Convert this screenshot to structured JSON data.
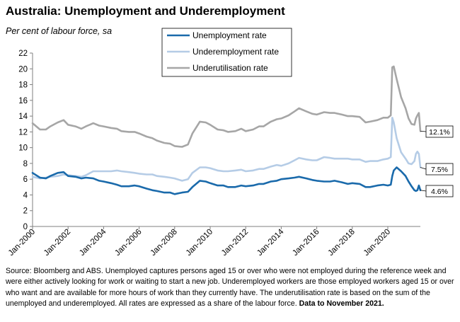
{
  "header": {
    "title": "Australia: Unemployment and Underemployment",
    "subtitle": "Per cent of labour force, sa"
  },
  "footer": {
    "source_text": "Source: Bloomberg and ABS. Unemployed captures persons aged 15 or over who were not employed during the reference week and were either actively looking for work or waiting to start a new job.  Underemployed workers are those employed workers aged 15 or over who want and are available for more hours of work than they currently have.  The underutilisation rate is based on the sum of the unemployed and underemployed. All rates are expressed as a share of the labour force.",
    "source_bold": "Data to November 2021."
  },
  "colors": {
    "unemployment": "#1a6aab",
    "underemployment": "#b5cce6",
    "underutilisation": "#a6a6a6",
    "axis": "#7f7f7f"
  },
  "chart_data": {
    "type": "line",
    "title": "Australia: Unemployment and Underemployment",
    "ylabel": "Per cent of labour force, sa",
    "ylim": [
      0,
      22
    ],
    "yticks": [
      0,
      2,
      4,
      6,
      8,
      10,
      12,
      14,
      16,
      18,
      20,
      22
    ],
    "xlim": [
      "2000-01",
      "2021-11"
    ],
    "xtick_labels": [
      "Jan-2000",
      "Jan-2002",
      "Jan-2004",
      "Jan-2006",
      "Jan-2008",
      "Jan-2010",
      "Jan-2012",
      "Jan-2014",
      "Jan-2016",
      "Jan-2018",
      "Jan-2020"
    ],
    "legend_position": "top-center",
    "grid": false,
    "series": [
      {
        "name": "Unemployment rate",
        "color_key": "unemployment",
        "end_label": "4.6%",
        "points": [
          [
            "2000-01",
            6.8
          ],
          [
            "2000-06",
            6.2
          ],
          [
            "2000-10",
            6.1
          ],
          [
            "2001-01",
            6.4
          ],
          [
            "2001-06",
            6.8
          ],
          [
            "2001-10",
            6.9
          ],
          [
            "2002-01",
            6.4
          ],
          [
            "2002-06",
            6.3
          ],
          [
            "2002-10",
            6.1
          ],
          [
            "2003-01",
            6.2
          ],
          [
            "2003-06",
            6.1
          ],
          [
            "2003-10",
            5.8
          ],
          [
            "2004-01",
            5.7
          ],
          [
            "2004-06",
            5.5
          ],
          [
            "2004-10",
            5.3
          ],
          [
            "2005-01",
            5.1
          ],
          [
            "2005-06",
            5.1
          ],
          [
            "2005-10",
            5.2
          ],
          [
            "2006-01",
            5.1
          ],
          [
            "2006-06",
            4.8
          ],
          [
            "2006-10",
            4.6
          ],
          [
            "2007-01",
            4.5
          ],
          [
            "2007-06",
            4.3
          ],
          [
            "2007-10",
            4.3
          ],
          [
            "2008-01",
            4.1
          ],
          [
            "2008-06",
            4.3
          ],
          [
            "2008-10",
            4.4
          ],
          [
            "2009-01",
            5.0
          ],
          [
            "2009-06",
            5.8
          ],
          [
            "2009-10",
            5.7
          ],
          [
            "2010-01",
            5.5
          ],
          [
            "2010-06",
            5.2
          ],
          [
            "2010-10",
            5.2
          ],
          [
            "2011-01",
            5.0
          ],
          [
            "2011-06",
            5.0
          ],
          [
            "2011-10",
            5.2
          ],
          [
            "2012-01",
            5.1
          ],
          [
            "2012-06",
            5.2
          ],
          [
            "2012-10",
            5.4
          ],
          [
            "2013-01",
            5.4
          ],
          [
            "2013-06",
            5.7
          ],
          [
            "2013-10",
            5.8
          ],
          [
            "2014-01",
            6.0
          ],
          [
            "2014-06",
            6.1
          ],
          [
            "2014-10",
            6.2
          ],
          [
            "2015-01",
            6.3
          ],
          [
            "2015-06",
            6.1
          ],
          [
            "2015-10",
            5.9
          ],
          [
            "2016-01",
            5.8
          ],
          [
            "2016-06",
            5.7
          ],
          [
            "2016-10",
            5.7
          ],
          [
            "2017-01",
            5.8
          ],
          [
            "2017-06",
            5.6
          ],
          [
            "2017-10",
            5.4
          ],
          [
            "2018-01",
            5.5
          ],
          [
            "2018-06",
            5.4
          ],
          [
            "2018-10",
            5.0
          ],
          [
            "2019-01",
            5.0
          ],
          [
            "2019-06",
            5.2
          ],
          [
            "2019-10",
            5.3
          ],
          [
            "2020-01",
            5.2
          ],
          [
            "2020-03",
            5.3
          ],
          [
            "2020-04",
            6.4
          ],
          [
            "2020-05",
            7.1
          ],
          [
            "2020-07",
            7.5
          ],
          [
            "2020-10",
            7.0
          ],
          [
            "2021-01",
            6.4
          ],
          [
            "2021-03",
            5.7
          ],
          [
            "2021-05",
            5.1
          ],
          [
            "2021-07",
            4.6
          ],
          [
            "2021-08",
            4.5
          ],
          [
            "2021-09",
            4.6
          ],
          [
            "2021-10",
            5.2
          ],
          [
            "2021-11",
            4.6
          ]
        ]
      },
      {
        "name": "Underemployment rate",
        "color_key": "underemployment",
        "end_label": "7.5%",
        "points": [
          [
            "2000-01",
            6.3
          ],
          [
            "2000-06",
            6.1
          ],
          [
            "2000-10",
            6.2
          ],
          [
            "2001-01",
            6.3
          ],
          [
            "2001-06",
            6.4
          ],
          [
            "2001-10",
            6.6
          ],
          [
            "2002-01",
            6.5
          ],
          [
            "2002-06",
            6.4
          ],
          [
            "2002-10",
            6.3
          ],
          [
            "2003-01",
            6.5
          ],
          [
            "2003-06",
            7.0
          ],
          [
            "2003-10",
            7.0
          ],
          [
            "2004-01",
            7.0
          ],
          [
            "2004-06",
            7.0
          ],
          [
            "2004-10",
            7.1
          ],
          [
            "2005-01",
            7.0
          ],
          [
            "2005-06",
            6.9
          ],
          [
            "2005-10",
            6.8
          ],
          [
            "2006-01",
            6.7
          ],
          [
            "2006-06",
            6.6
          ],
          [
            "2006-10",
            6.6
          ],
          [
            "2007-01",
            6.4
          ],
          [
            "2007-06",
            6.3
          ],
          [
            "2007-10",
            6.2
          ],
          [
            "2008-01",
            6.1
          ],
          [
            "2008-06",
            5.8
          ],
          [
            "2008-10",
            6.0
          ],
          [
            "2009-01",
            6.8
          ],
          [
            "2009-06",
            7.5
          ],
          [
            "2009-10",
            7.5
          ],
          [
            "2010-01",
            7.4
          ],
          [
            "2010-06",
            7.1
          ],
          [
            "2010-10",
            7.0
          ],
          [
            "2011-01",
            7.0
          ],
          [
            "2011-06",
            7.1
          ],
          [
            "2011-10",
            7.2
          ],
          [
            "2012-01",
            7.0
          ],
          [
            "2012-06",
            7.1
          ],
          [
            "2012-10",
            7.3
          ],
          [
            "2013-01",
            7.3
          ],
          [
            "2013-06",
            7.6
          ],
          [
            "2013-10",
            7.8
          ],
          [
            "2014-01",
            7.7
          ],
          [
            "2014-06",
            8.0
          ],
          [
            "2014-10",
            8.4
          ],
          [
            "2015-01",
            8.7
          ],
          [
            "2015-06",
            8.5
          ],
          [
            "2015-10",
            8.4
          ],
          [
            "2016-01",
            8.4
          ],
          [
            "2016-06",
            8.8
          ],
          [
            "2016-10",
            8.7
          ],
          [
            "2017-01",
            8.6
          ],
          [
            "2017-06",
            8.6
          ],
          [
            "2017-10",
            8.6
          ],
          [
            "2018-01",
            8.5
          ],
          [
            "2018-06",
            8.5
          ],
          [
            "2018-10",
            8.2
          ],
          [
            "2019-01",
            8.3
          ],
          [
            "2019-06",
            8.3
          ],
          [
            "2019-10",
            8.5
          ],
          [
            "2020-01",
            8.6
          ],
          [
            "2020-03",
            8.8
          ],
          [
            "2020-04",
            13.8
          ],
          [
            "2020-05",
            13.2
          ],
          [
            "2020-07",
            11.2
          ],
          [
            "2020-10",
            9.4
          ],
          [
            "2021-01",
            8.6
          ],
          [
            "2021-03",
            8.0
          ],
          [
            "2021-05",
            7.9
          ],
          [
            "2021-07",
            8.3
          ],
          [
            "2021-08",
            9.2
          ],
          [
            "2021-09",
            9.5
          ],
          [
            "2021-10",
            9.2
          ],
          [
            "2021-11",
            7.5
          ]
        ]
      },
      {
        "name": "Underutilisation rate",
        "color_key": "underutilisation",
        "end_label": "12.1%",
        "points": [
          [
            "2000-01",
            13.1
          ],
          [
            "2000-06",
            12.3
          ],
          [
            "2000-10",
            12.3
          ],
          [
            "2001-01",
            12.7
          ],
          [
            "2001-06",
            13.2
          ],
          [
            "2001-10",
            13.5
          ],
          [
            "2002-01",
            12.9
          ],
          [
            "2002-06",
            12.7
          ],
          [
            "2002-10",
            12.4
          ],
          [
            "2003-01",
            12.7
          ],
          [
            "2003-06",
            13.1
          ],
          [
            "2003-10",
            12.8
          ],
          [
            "2004-01",
            12.7
          ],
          [
            "2004-06",
            12.5
          ],
          [
            "2004-10",
            12.4
          ],
          [
            "2005-01",
            12.1
          ],
          [
            "2005-06",
            12.0
          ],
          [
            "2005-10",
            12.0
          ],
          [
            "2006-01",
            11.8
          ],
          [
            "2006-06",
            11.4
          ],
          [
            "2006-10",
            11.2
          ],
          [
            "2007-01",
            10.9
          ],
          [
            "2007-06",
            10.6
          ],
          [
            "2007-10",
            10.5
          ],
          [
            "2008-01",
            10.2
          ],
          [
            "2008-06",
            10.1
          ],
          [
            "2008-10",
            10.4
          ],
          [
            "2009-01",
            11.8
          ],
          [
            "2009-06",
            13.3
          ],
          [
            "2009-10",
            13.2
          ],
          [
            "2010-01",
            12.9
          ],
          [
            "2010-06",
            12.3
          ],
          [
            "2010-10",
            12.2
          ],
          [
            "2011-01",
            12.0
          ],
          [
            "2011-06",
            12.1
          ],
          [
            "2011-10",
            12.4
          ],
          [
            "2012-01",
            12.1
          ],
          [
            "2012-06",
            12.3
          ],
          [
            "2012-10",
            12.7
          ],
          [
            "2013-01",
            12.7
          ],
          [
            "2013-06",
            13.3
          ],
          [
            "2013-10",
            13.6
          ],
          [
            "2014-01",
            13.7
          ],
          [
            "2014-06",
            14.1
          ],
          [
            "2014-10",
            14.6
          ],
          [
            "2015-01",
            15.0
          ],
          [
            "2015-06",
            14.6
          ],
          [
            "2015-10",
            14.3
          ],
          [
            "2016-01",
            14.2
          ],
          [
            "2016-06",
            14.5
          ],
          [
            "2016-10",
            14.4
          ],
          [
            "2017-01",
            14.4
          ],
          [
            "2017-06",
            14.2
          ],
          [
            "2017-10",
            14.0
          ],
          [
            "2018-01",
            14.0
          ],
          [
            "2018-06",
            13.9
          ],
          [
            "2018-10",
            13.2
          ],
          [
            "2019-01",
            13.3
          ],
          [
            "2019-06",
            13.5
          ],
          [
            "2019-10",
            13.8
          ],
          [
            "2020-01",
            13.8
          ],
          [
            "2020-03",
            14.1
          ],
          [
            "2020-04",
            20.2
          ],
          [
            "2020-05",
            20.3
          ],
          [
            "2020-07",
            18.7
          ],
          [
            "2020-10",
            16.4
          ],
          [
            "2021-01",
            15.0
          ],
          [
            "2021-03",
            13.7
          ],
          [
            "2021-05",
            13.0
          ],
          [
            "2021-07",
            12.9
          ],
          [
            "2021-08",
            13.7
          ],
          [
            "2021-09",
            14.1
          ],
          [
            "2021-10",
            14.4
          ],
          [
            "2021-11",
            12.1
          ]
        ]
      }
    ]
  }
}
